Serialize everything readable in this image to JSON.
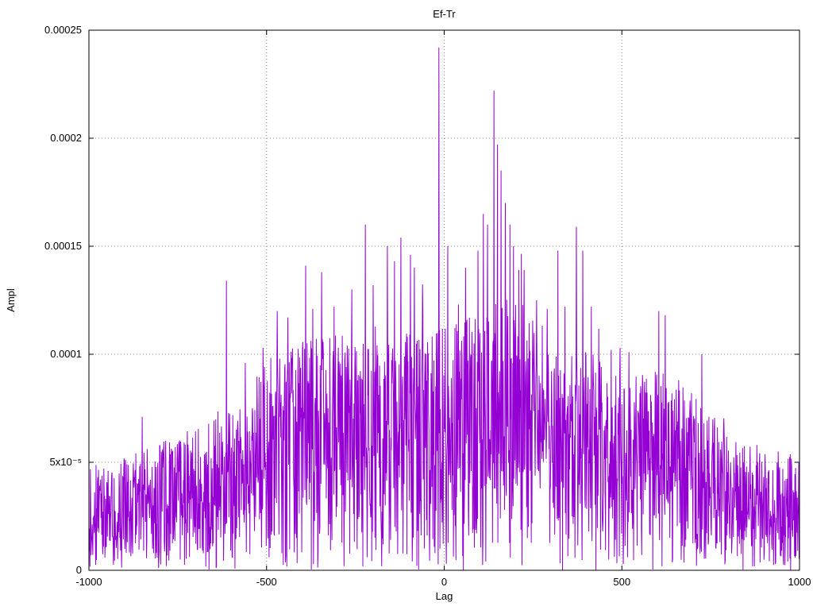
{
  "page": {
    "background": "#ffffff"
  },
  "chart_data": {
    "type": "line",
    "title": "Ef-Tr",
    "xlabel": "Lag",
    "ylabel": "Ampl",
    "xlim": [
      -1000,
      1000
    ],
    "ylim": [
      0,
      0.00025
    ],
    "grid": true,
    "legend": "none",
    "line_color": "#9400d3",
    "grid_color": "#9a9a9a",
    "border_color": "#000000",
    "x_ticks": [
      -1000,
      -500,
      0,
      500,
      1000
    ],
    "x_tick_labels": [
      "-1000",
      "-500",
      "0",
      "500",
      "1000"
    ],
    "y_ticks": [
      0,
      5e-05,
      0.0001,
      0.00015,
      0.0002,
      0.00025
    ],
    "y_tick_labels": [
      "0",
      "5x10⁻⁵",
      "0.0001",
      "0.00015",
      "0.0002",
      "0.00025"
    ],
    "description": "Dense noisy cross-correlation amplitude vs lag; noise floor rises from ~0.00004 at the edges to ~0.00012 near the center, with isolated tall spikes",
    "noise": {
      "seed": 424242,
      "n_points": 2001,
      "spike_probability": 0.025,
      "spike_factor": 1.3,
      "envelope": [
        [
          -1000,
          4.8e-05
        ],
        [
          -900,
          5.2e-05
        ],
        [
          -800,
          6e-05
        ],
        [
          -700,
          6.6e-05
        ],
        [
          -600,
          7.4e-05
        ],
        [
          -500,
          9.6e-05
        ],
        [
          -400,
          0.000106
        ],
        [
          -300,
          0.00011
        ],
        [
          -200,
          0.000104
        ],
        [
          -100,
          0.00011
        ],
        [
          0,
          0.000112
        ],
        [
          100,
          0.00012
        ],
        [
          200,
          0.000128
        ],
        [
          300,
          0.000104
        ],
        [
          400,
          0.000102
        ],
        [
          500,
          9.2e-05
        ],
        [
          600,
          9.4e-05
        ],
        [
          700,
          8.2e-05
        ],
        [
          800,
          6.4e-05
        ],
        [
          900,
          5.4e-05
        ],
        [
          1000,
          5.6e-05
        ]
      ]
    },
    "peaks": [
      {
        "x": -850,
        "y": 7.1e-05
      },
      {
        "x": -613,
        "y": 0.000134
      },
      {
        "x": -560,
        "y": 9.6e-05
      },
      {
        "x": -510,
        "y": 0.000103
      },
      {
        "x": -470,
        "y": 0.00012
      },
      {
        "x": -440,
        "y": 0.000117
      },
      {
        "x": -390,
        "y": 0.000141
      },
      {
        "x": -370,
        "y": 0.000121
      },
      {
        "x": -345,
        "y": 0.000138
      },
      {
        "x": -310,
        "y": 0.000122
      },
      {
        "x": -260,
        "y": 0.00013
      },
      {
        "x": -222,
        "y": 0.00016
      },
      {
        "x": -200,
        "y": 0.000132
      },
      {
        "x": -160,
        "y": 0.00015
      },
      {
        "x": -140,
        "y": 0.000143
      },
      {
        "x": -122,
        "y": 0.000154
      },
      {
        "x": -95,
        "y": 0.000146
      },
      {
        "x": -60,
        "y": 0.000118
      },
      {
        "x": -15,
        "y": 0.000242
      },
      {
        "x": 10,
        "y": 0.00015
      },
      {
        "x": 40,
        "y": 0.000123
      },
      {
        "x": 60,
        "y": 0.00014
      },
      {
        "x": 95,
        "y": 0.000148
      },
      {
        "x": 110,
        "y": 0.000165
      },
      {
        "x": 122,
        "y": 0.00016
      },
      {
        "x": 140,
        "y": 0.000222
      },
      {
        "x": 150,
        "y": 0.000197
      },
      {
        "x": 160,
        "y": 0.000185
      },
      {
        "x": 172,
        "y": 0.00017
      },
      {
        "x": 185,
        "y": 0.00016
      },
      {
        "x": 195,
        "y": 0.00015
      },
      {
        "x": 210,
        "y": 0.000139
      },
      {
        "x": 225,
        "y": 0.000139
      },
      {
        "x": 260,
        "y": 0.000125
      },
      {
        "x": 290,
        "y": 0.000121
      },
      {
        "x": 320,
        "y": 0.000148
      },
      {
        "x": 340,
        "y": 0.000122
      },
      {
        "x": 372,
        "y": 0.000159
      },
      {
        "x": 390,
        "y": 0.000148
      },
      {
        "x": 414,
        "y": 0.000122
      },
      {
        "x": 470,
        "y": 0.000102
      },
      {
        "x": 520,
        "y": 0.000101
      },
      {
        "x": 604,
        "y": 0.00012
      },
      {
        "x": 622,
        "y": 0.000118
      },
      {
        "x": 660,
        "y": 8.8e-05
      },
      {
        "x": 725,
        "y": 0.0001
      },
      {
        "x": 880,
        "y": 5.8e-05
      },
      {
        "x": 940,
        "y": 5.5e-05
      }
    ]
  }
}
